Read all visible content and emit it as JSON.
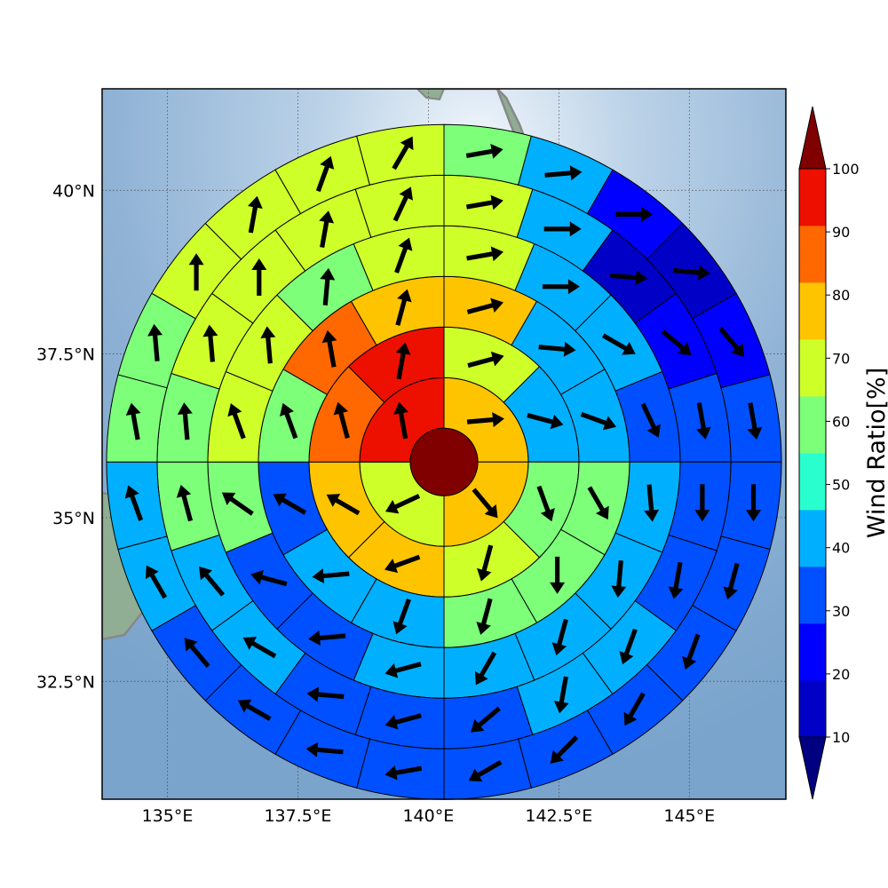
{
  "chart_data": {
    "type": "heatmap",
    "subtype": "polar-sector-map-with-wind-vectors",
    "title": "",
    "map_extent": {
      "lon": [
        133.75,
        146.85
      ],
      "lat": [
        30.7,
        41.55
      ]
    },
    "x_ticks": [
      {
        "value": 135.0,
        "label": "135°E"
      },
      {
        "value": 137.5,
        "label": "137.5°E"
      },
      {
        "value": 140.0,
        "label": "140°E"
      },
      {
        "value": 142.5,
        "label": "142.5°E"
      },
      {
        "value": 145.0,
        "label": "145°E"
      }
    ],
    "y_ticks": [
      {
        "value": 40.0,
        "label": "40°N"
      },
      {
        "value": 37.5,
        "label": "37.5°N"
      },
      {
        "value": 35.0,
        "label": "35°N"
      },
      {
        "value": 32.5,
        "label": "32.5°N"
      }
    ],
    "grid": true,
    "center": {
      "lon": 140.3,
      "lat": 35.85
    },
    "center_value": 100,
    "rings": [
      {
        "sectors": 4,
        "values": [
          75,
          75,
          65,
          95
        ],
        "vector_deg": [
          85,
          140,
          245,
          350
        ]
      },
      {
        "sectors": 8,
        "values": [
          65,
          45,
          55,
          65,
          75,
          75,
          85,
          95
        ],
        "vector_deg": [
          75,
          105,
          160,
          195,
          250,
          300,
          345,
          10
        ]
      },
      {
        "sectors": 12,
        "values": [
          75,
          45,
          45,
          55,
          55,
          55,
          45,
          45,
          35,
          55,
          85,
          75
        ],
        "vector_deg": [
          75,
          95,
          110,
          150,
          180,
          195,
          200,
          265,
          300,
          340,
          350,
          15
        ]
      },
      {
        "sectors": 16,
        "values": [
          65,
          45,
          45,
          35,
          45,
          45,
          45,
          45,
          45,
          35,
          35,
          55,
          65,
          65,
          55,
          65
        ],
        "vector_deg": [
          80,
          90,
          120,
          155,
          175,
          185,
          195,
          210,
          255,
          265,
          285,
          305,
          340,
          355,
          5,
          20
        ]
      },
      {
        "sectors": 20,
        "values": [
          65,
          45,
          15,
          25,
          35,
          35,
          35,
          45,
          45,
          35,
          35,
          35,
          45,
          45,
          55,
          55,
          65,
          65,
          65,
          65
        ],
        "vector_deg": [
          80,
          90,
          95,
          130,
          170,
          180,
          190,
          200,
          190,
          230,
          255,
          275,
          300,
          320,
          345,
          355,
          355,
          0,
          10,
          25
        ]
      },
      {
        "sectors": 24,
        "values": [
          55,
          45,
          25,
          15,
          25,
          35,
          35,
          35,
          35,
          35,
          35,
          35,
          35,
          35,
          35,
          35,
          45,
          45,
          55,
          55,
          65,
          65,
          65,
          65
        ],
        "vector_deg": [
          80,
          85,
          90,
          95,
          140,
          170,
          180,
          195,
          200,
          210,
          225,
          240,
          260,
          275,
          300,
          320,
          330,
          340,
          350,
          355,
          0,
          10,
          20,
          30
        ]
      }
    ],
    "colorbar": {
      "title": "Wind Ratio[%]",
      "ticks": [
        10,
        20,
        30,
        40,
        50,
        60,
        70,
        80,
        90,
        100
      ],
      "range": [
        10,
        100
      ],
      "extend": "both",
      "colors": [
        "#0000c7",
        "#0000ff",
        "#0050ff",
        "#00b0ff",
        "#29ffce",
        "#7dff7a",
        "#ceff29",
        "#ffc400",
        "#ff6800",
        "#ed1000"
      ],
      "under_color": "#000080",
      "over_color": "#800000",
      "placement": "right"
    }
  }
}
